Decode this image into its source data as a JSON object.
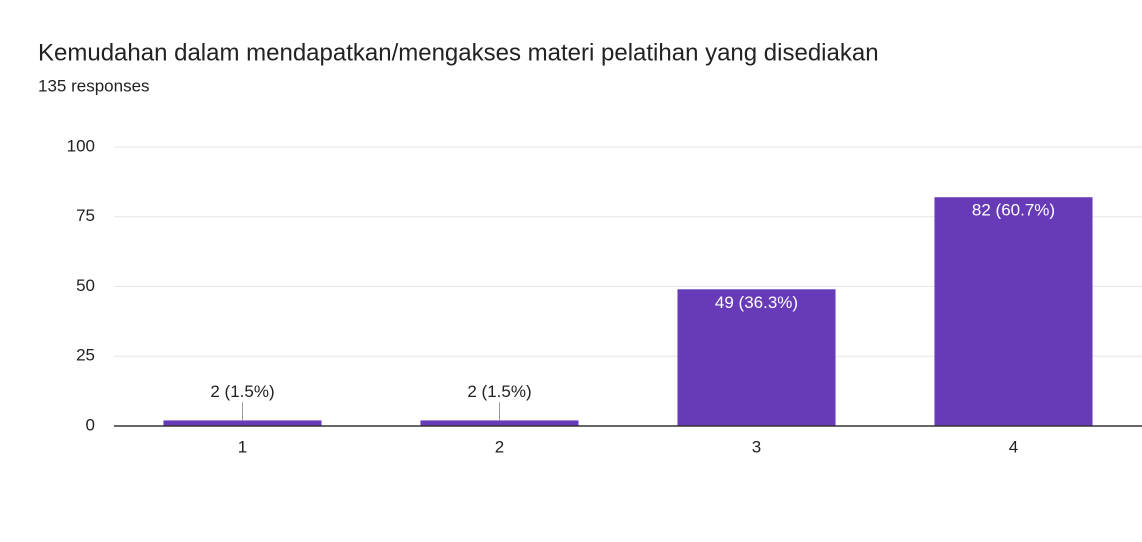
{
  "chart_data": {
    "type": "bar",
    "title": "Kemudahan dalam mendapatkan/mengakses materi pelatihan yang disediakan",
    "subtitle": "135 responses",
    "categories": [
      "1",
      "2",
      "3",
      "4"
    ],
    "values": [
      2,
      2,
      49,
      82
    ],
    "value_labels": [
      "2 (1.5%)",
      "2 (1.5%)",
      "49 (36.3%)",
      "82 (60.7%)"
    ],
    "color": "#673ab7",
    "ylim": [
      0,
      100
    ],
    "yticks": [
      0,
      25,
      50,
      75,
      100
    ],
    "grid": true
  }
}
